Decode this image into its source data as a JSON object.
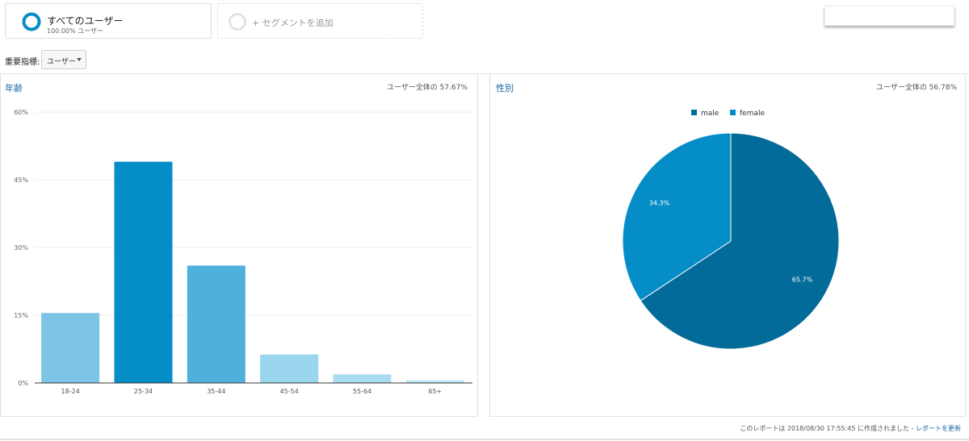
{
  "segments": {
    "all_users": {
      "title": "すべてのユーザー",
      "subtitle": "100.00% ユーザー"
    },
    "add": {
      "label": "+ セグメントを追加"
    }
  },
  "metric": {
    "label": "重要指標:",
    "selected": "ユーザー"
  },
  "age_panel": {
    "title": "年齢",
    "coverage": "ユーザー全体の 57.67%"
  },
  "gender_panel": {
    "title": "性別",
    "coverage": "ユーザー全体の 56.78%"
  },
  "footer": {
    "created_text": "このレポートは 2018/08/30 17:55:45 に作成されました -",
    "refresh_link": "レポートを更新"
  },
  "colors": {
    "accent": "#1565a6",
    "gauge": "#058dc7"
  },
  "chart_data": [
    {
      "type": "bar",
      "categories": [
        "18-24",
        "25-34",
        "35-44",
        "45-54",
        "55-64",
        "65+"
      ],
      "values": [
        15.5,
        49.0,
        26.0,
        6.3,
        1.9,
        0.6
      ],
      "colors": [
        "#7cc5e6",
        "#058dc7",
        "#50b0dc",
        "#9ad6ee",
        "#a9dcf1",
        "#bee6f6"
      ],
      "yticks": [
        "0%",
        "15%",
        "30%",
        "45%",
        "60%"
      ],
      "ylim": [
        0,
        60
      ],
      "grid": true
    },
    {
      "type": "pie",
      "legend": [
        "male",
        "female"
      ],
      "values": [
        65.7,
        34.3
      ],
      "labels": [
        "65.7%",
        "34.3%"
      ],
      "colors": [
        "#036b99",
        "#058dc7"
      ],
      "legend_position": "top"
    }
  ]
}
